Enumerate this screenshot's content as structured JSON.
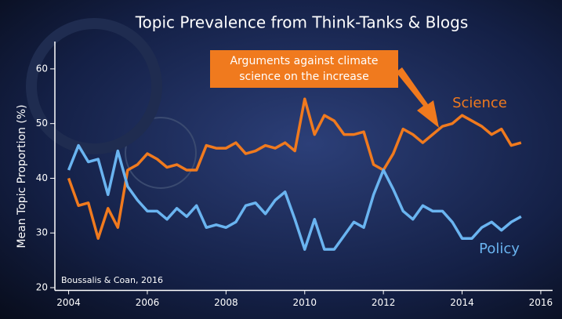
{
  "chart_data": {
    "type": "line",
    "title": "Topic Prevalence from Think-Tanks & Blogs",
    "y_label": "Mean Topic Proportion (%)",
    "annotation": [
      "Arguments against climate",
      "science on the increase"
    ],
    "source": "Boussalis & Coan, 2016",
    "xlim": [
      2003.65,
      2016.3
    ],
    "xticks": [
      2004,
      2006,
      2008,
      2010,
      2012,
      2014,
      2016
    ],
    "ylim": [
      19.5,
      65
    ],
    "yticks": [
      20,
      30,
      40,
      50,
      60
    ],
    "x": [
      2004,
      2004.25,
      2004.5,
      2004.75,
      2005,
      2005.25,
      2005.5,
      2005.75,
      2006,
      2006.25,
      2006.5,
      2006.75,
      2007,
      2007.25,
      2007.5,
      2007.75,
      2008,
      2008.25,
      2008.5,
      2008.75,
      2009,
      2009.25,
      2009.5,
      2009.75,
      2010,
      2010.25,
      2010.5,
      2010.75,
      2011,
      2011.25,
      2011.5,
      2011.75,
      2012,
      2012.25,
      2012.5,
      2012.75,
      2013,
      2013.25,
      2013.5,
      2013.75,
      2014,
      2014.25,
      2014.5,
      2014.75,
      2015,
      2015.25,
      2015.5
    ],
    "series": [
      {
        "name": "Science",
        "color": "#f07a1e",
        "values": [
          40,
          35,
          35.5,
          29,
          34.5,
          31,
          41.5,
          42.5,
          44.5,
          43.5,
          42,
          42.5,
          41.5,
          41.5,
          46,
          45.5,
          45.5,
          46.5,
          44.5,
          45,
          46,
          45.5,
          46.5,
          45,
          54.5,
          48,
          51.5,
          50.5,
          48,
          48,
          48.5,
          42.5,
          41.5,
          44.5,
          49,
          48,
          46.5,
          48,
          49.5,
          50,
          51.5,
          50.5,
          49.5,
          48,
          49,
          46,
          46.5
        ]
      },
      {
        "name": "Policy",
        "color": "#6ab4f0",
        "values": [
          41.5,
          46,
          43,
          43.5,
          37,
          45,
          38.5,
          36,
          34,
          34,
          32.5,
          34.5,
          33,
          35,
          31,
          31.5,
          31,
          32,
          35,
          35.5,
          33.5,
          36,
          37.5,
          32.5,
          27,
          32.5,
          27,
          27,
          29.5,
          32,
          31,
          37,
          41.5,
          38,
          34,
          32.5,
          35,
          34,
          34,
          32,
          29,
          29,
          31,
          32,
          30.5,
          32,
          33
        ]
      }
    ]
  }
}
